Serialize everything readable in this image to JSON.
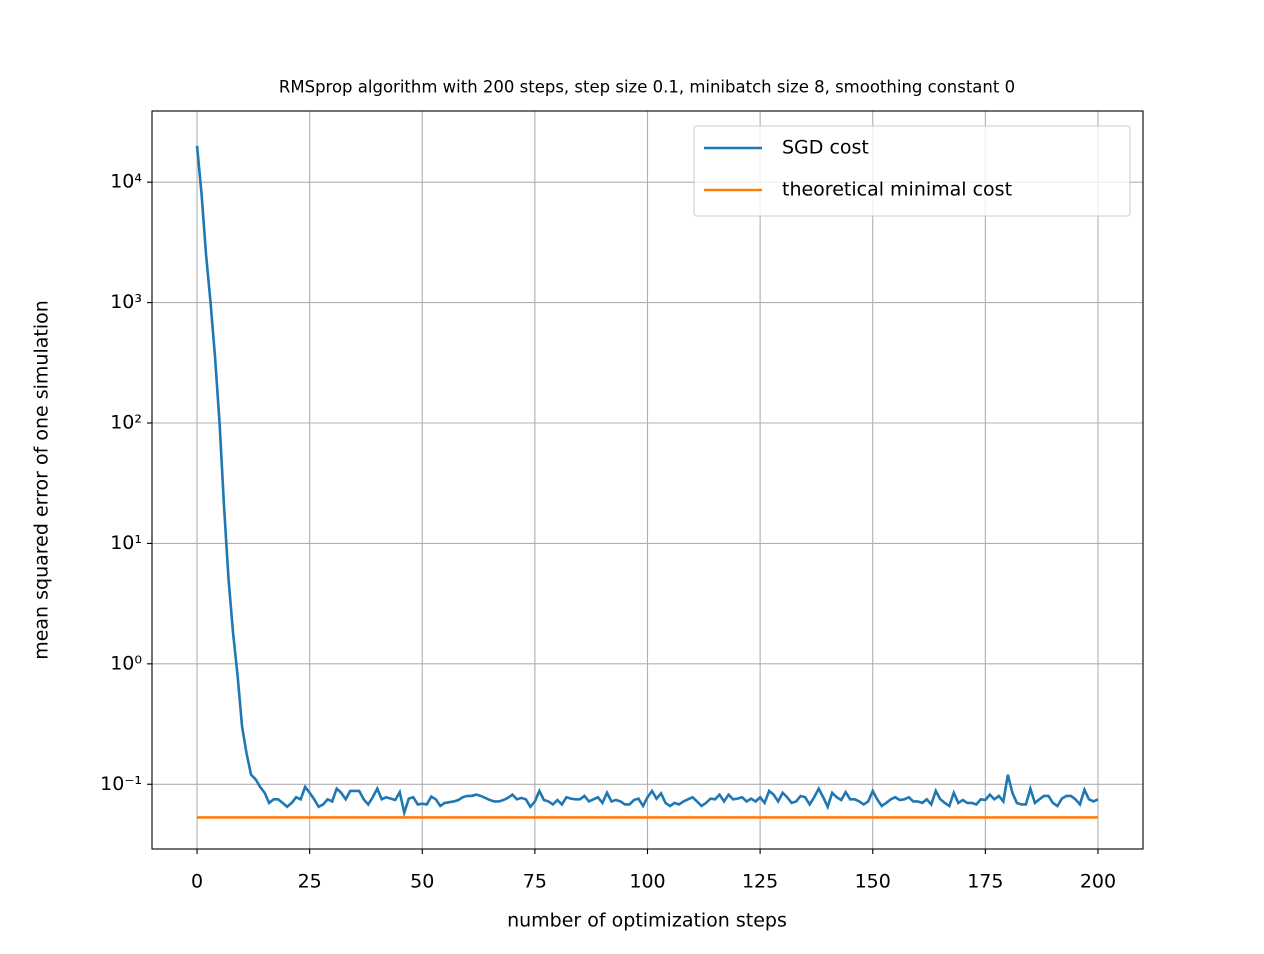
{
  "chart_data": {
    "type": "line",
    "title": "RMSprop algorithm with 200 steps, step size 0.1, minibatch size 8, smoothing constant 0",
    "xlabel": "number of optimization steps",
    "ylabel": "mean squared error of one simulation",
    "ylog": true,
    "grid": true,
    "legend": "upper right",
    "xlim": [
      -10,
      210
    ],
    "ylim": [
      0.029,
      39000
    ],
    "xticks": [
      0,
      25,
      50,
      75,
      100,
      125,
      150,
      175,
      200
    ],
    "yticks": [
      {
        "value": 0.1,
        "label": "10⁻¹"
      },
      {
        "value": 1,
        "label": "10⁰"
      },
      {
        "value": 10,
        "label": "10¹"
      },
      {
        "value": 100,
        "label": "10²"
      },
      {
        "value": 1000,
        "label": "10³"
      },
      {
        "value": 10000,
        "label": "10⁴"
      }
    ],
    "series": [
      {
        "name": "SGD cost",
        "color": "#1f77b4",
        "x": [
          0,
          1,
          2,
          3,
          4,
          5,
          6,
          7,
          8,
          9,
          10,
          11,
          12,
          13,
          14,
          15,
          16,
          17,
          18,
          19,
          20,
          21,
          22,
          23,
          24,
          25,
          26,
          27,
          28,
          29,
          30,
          31,
          32,
          33,
          34,
          35,
          36,
          37,
          38,
          39,
          40,
          41,
          42,
          43,
          44,
          45,
          46,
          47,
          48,
          49,
          50,
          51,
          52,
          53,
          54,
          55,
          56,
          57,
          58,
          59,
          60,
          61,
          62,
          63,
          64,
          65,
          66,
          67,
          68,
          69,
          70,
          71,
          72,
          73,
          74,
          75,
          76,
          77,
          78,
          79,
          80,
          81,
          82,
          83,
          84,
          85,
          86,
          87,
          88,
          89,
          90,
          91,
          92,
          93,
          94,
          95,
          96,
          97,
          98,
          99,
          100,
          101,
          102,
          103,
          104,
          105,
          106,
          107,
          108,
          109,
          110,
          111,
          112,
          113,
          114,
          115,
          116,
          117,
          118,
          119,
          120,
          121,
          122,
          123,
          124,
          125,
          126,
          127,
          128,
          129,
          130,
          131,
          132,
          133,
          134,
          135,
          136,
          137,
          138,
          139,
          140,
          141,
          142,
          143,
          144,
          145,
          146,
          147,
          148,
          149,
          150,
          151,
          152,
          153,
          154,
          155,
          156,
          157,
          158,
          159,
          160,
          161,
          162,
          163,
          164,
          165,
          166,
          167,
          168,
          169,
          170,
          171,
          172,
          173,
          174,
          175,
          176,
          177,
          178,
          179,
          180,
          181,
          182,
          183,
          184,
          185,
          186,
          187,
          188,
          189,
          190,
          191,
          192,
          193,
          194,
          195,
          196,
          197,
          198,
          199,
          200
        ],
        "values": [
          20000,
          8000,
          2500,
          1000,
          350,
          100,
          20,
          5,
          1.8,
          0.8,
          0.3,
          0.18,
          0.12,
          0.11,
          0.095,
          0.085,
          0.07,
          0.075,
          0.075,
          0.07,
          0.065,
          0.07,
          0.078,
          0.075,
          0.095,
          0.085,
          0.075,
          0.065,
          0.068,
          0.075,
          0.072,
          0.092,
          0.085,
          0.075,
          0.088,
          0.088,
          0.088,
          0.075,
          0.068,
          0.078,
          0.092,
          0.075,
          0.078,
          0.076,
          0.074,
          0.086,
          0.058,
          0.076,
          0.078,
          0.068,
          0.069,
          0.068,
          0.079,
          0.075,
          0.066,
          0.07,
          0.071,
          0.072,
          0.074,
          0.078,
          0.08,
          0.08,
          0.082,
          0.08,
          0.077,
          0.074,
          0.072,
          0.072,
          0.074,
          0.077,
          0.082,
          0.075,
          0.077,
          0.075,
          0.065,
          0.072,
          0.088,
          0.074,
          0.072,
          0.068,
          0.074,
          0.068,
          0.078,
          0.076,
          0.075,
          0.075,
          0.08,
          0.072,
          0.075,
          0.078,
          0.07,
          0.085,
          0.072,
          0.074,
          0.072,
          0.068,
          0.068,
          0.074,
          0.076,
          0.066,
          0.078,
          0.088,
          0.076,
          0.084,
          0.07,
          0.066,
          0.07,
          0.068,
          0.072,
          0.075,
          0.078,
          0.072,
          0.066,
          0.07,
          0.076,
          0.075,
          0.082,
          0.072,
          0.082,
          0.075,
          0.076,
          0.078,
          0.072,
          0.076,
          0.072,
          0.078,
          0.07,
          0.088,
          0.082,
          0.072,
          0.085,
          0.078,
          0.07,
          0.072,
          0.08,
          0.078,
          0.068,
          0.078,
          0.092,
          0.078,
          0.065,
          0.085,
          0.078,
          0.074,
          0.086,
          0.075,
          0.075,
          0.072,
          0.068,
          0.072,
          0.088,
          0.075,
          0.066,
          0.07,
          0.075,
          0.078,
          0.074,
          0.075,
          0.078,
          0.072,
          0.072,
          0.07,
          0.075,
          0.068,
          0.088,
          0.075,
          0.07,
          0.066,
          0.085,
          0.07,
          0.074,
          0.07,
          0.07,
          0.068,
          0.075,
          0.074,
          0.082,
          0.075,
          0.08,
          0.072,
          0.12,
          0.085,
          0.07,
          0.068,
          0.068,
          0.092,
          0.07,
          0.075,
          0.08,
          0.08,
          0.07,
          0.066,
          0.076,
          0.08,
          0.08,
          0.075,
          0.068,
          0.09,
          0.075,
          0.072,
          0.075
        ]
      },
      {
        "name": "theoretical minimal cost",
        "color": "#ff7f0e",
        "x": [
          0,
          200
        ],
        "values": [
          0.053,
          0.053
        ]
      }
    ]
  }
}
